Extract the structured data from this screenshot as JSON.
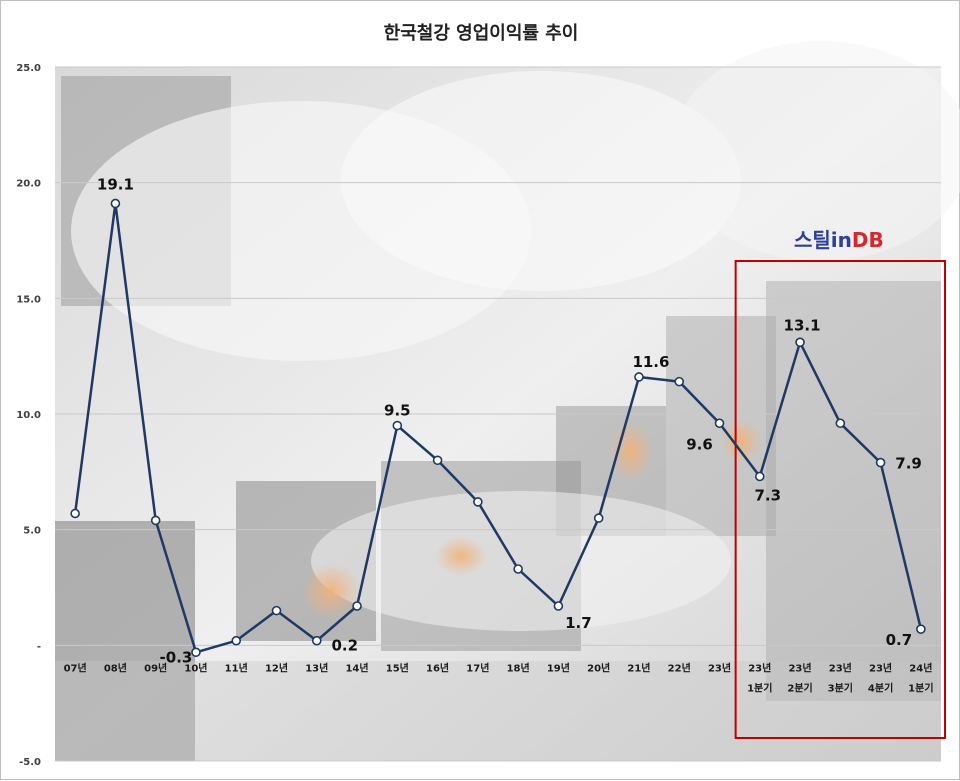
{
  "chart_data": {
    "type": "line",
    "title": "한국철강 영업이익률 추이",
    "xlabel": "",
    "ylabel": "",
    "ylim": [
      -5,
      25
    ],
    "y_ticks": [
      "-5.0",
      "-",
      "5.0",
      "10.0",
      "15.0",
      "20.0",
      "25.0"
    ],
    "grid": true,
    "categories": [
      [
        "07년"
      ],
      [
        "08년"
      ],
      [
        "09년"
      ],
      [
        "10년"
      ],
      [
        "11년"
      ],
      [
        "12년"
      ],
      [
        "13년"
      ],
      [
        "14년"
      ],
      [
        "15년"
      ],
      [
        "16년"
      ],
      [
        "17년"
      ],
      [
        "18년"
      ],
      [
        "19년"
      ],
      [
        "20년"
      ],
      [
        "21년"
      ],
      [
        "22년"
      ],
      [
        "23년"
      ],
      [
        "23년",
        "1분기"
      ],
      [
        "23년",
        "2분기"
      ],
      [
        "23년",
        "3분기"
      ],
      [
        "23년",
        "4분기"
      ],
      [
        "24년",
        "1분기"
      ]
    ],
    "series": [
      {
        "values": [
          5.7,
          19.1,
          5.4,
          -0.3,
          0.2,
          1.5,
          0.2,
          1.7,
          9.5,
          8.0,
          6.2,
          3.3,
          1.7,
          5.5,
          11.6,
          11.4,
          9.6,
          7.3,
          13.1,
          9.6,
          7.9,
          0.7
        ],
        "color": "#1f3864"
      }
    ],
    "data_labels": [
      {
        "index": 1,
        "text": "19.1"
      },
      {
        "index": 3,
        "text": "-0.3"
      },
      {
        "index": 6,
        "text": "0.2"
      },
      {
        "index": 8,
        "text": "9.5"
      },
      {
        "index": 12,
        "text": "1.7"
      },
      {
        "index": 14,
        "text": "11.6"
      },
      {
        "index": 16,
        "text": "9.6"
      },
      {
        "index": 17,
        "text": "7.3"
      },
      {
        "index": 18,
        "text": "13.1"
      },
      {
        "index": 20,
        "text": "7.9"
      },
      {
        "index": 21,
        "text": "0.7"
      }
    ],
    "highlight": {
      "from_index": 17,
      "to_index": 21,
      "color": "#c00000"
    }
  },
  "logo": {
    "part1": "스틸in",
    "part2": "DB",
    "color1": "#2c3f9a",
    "color2": "#d7262e"
  },
  "background_photo": "steel-mill-smoke"
}
